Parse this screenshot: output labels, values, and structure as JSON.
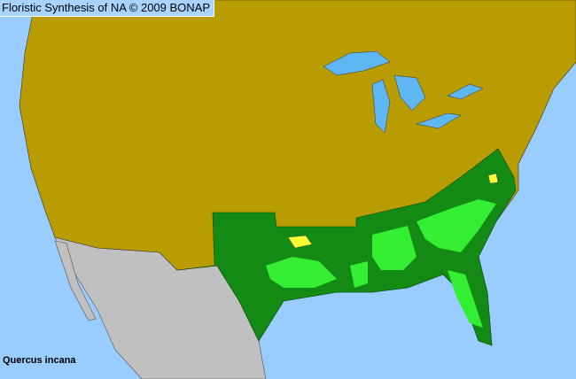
{
  "header": {
    "title": "Floristic Synthesis of NA © 2009 BONAP"
  },
  "species": {
    "name": "Quercus incana"
  },
  "colors": {
    "ocean": "#99ccff",
    "land_absent": "#b89c00",
    "state_present": "#138a13",
    "county_present": "#33ee33",
    "county_rare": "#ffff33",
    "outside_range": "#c0c0c0",
    "lakes": "#5eb6f5"
  }
}
